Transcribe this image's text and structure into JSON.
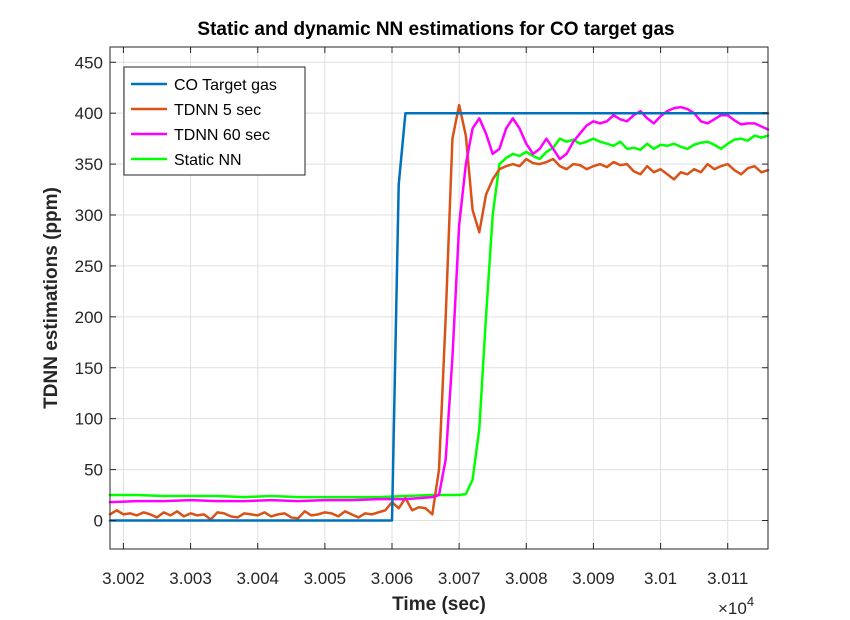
{
  "chart_data": {
    "type": "line",
    "title": "Static and dynamic NN estimations for CO target gas",
    "xlabel": "Time (sec)",
    "ylabel": "TDNN estimations (ppm)",
    "x_exponent_label": "×10",
    "x_exponent_power": "4",
    "xlim": [
      30018,
      30116
    ],
    "ylim": [
      -28,
      465
    ],
    "grid": true,
    "legend_position": "top-left",
    "x_ticks": [
      30020,
      30030,
      30040,
      30050,
      30060,
      30070,
      30080,
      30090,
      30100,
      30110
    ],
    "x_tick_labels": [
      "3.002",
      "3.003",
      "3.004",
      "3.005",
      "3.006",
      "3.007",
      "3.008",
      "3.009",
      "3.01",
      "3.011"
    ],
    "y_ticks": [
      0,
      50,
      100,
      150,
      200,
      250,
      300,
      350,
      400,
      450
    ],
    "y_tick_labels": [
      "0",
      "50",
      "100",
      "150",
      "200",
      "250",
      "300",
      "350",
      "400",
      "450"
    ],
    "series": [
      {
        "name": "CO Target gas",
        "color": "#0072BD",
        "x": [
          30018,
          30060,
          30061,
          30062,
          30116
        ],
        "y": [
          0,
          0,
          330,
          400,
          400
        ]
      },
      {
        "name": "TDNN 5 sec",
        "color": "#D95319",
        "x": [
          30018,
          30019,
          30020,
          30021,
          30022,
          30023,
          30024,
          30025,
          30026,
          30027,
          30028,
          30029,
          30030,
          30031,
          30032,
          30033,
          30034,
          30035,
          30036,
          30037,
          30038,
          30039,
          30040,
          30041,
          30042,
          30043,
          30044,
          30045,
          30046,
          30047,
          30048,
          30049,
          30050,
          30051,
          30052,
          30053,
          30054,
          30055,
          30056,
          30057,
          30058,
          30059,
          30060,
          30061,
          30062,
          30063,
          30064,
          30065,
          30066,
          30067,
          30068,
          30069,
          30070,
          30071,
          30072,
          30073,
          30074,
          30075,
          30076,
          30077,
          30078,
          30079,
          30080,
          30081,
          30082,
          30083,
          30084,
          30085,
          30086,
          30087,
          30088,
          30089,
          30090,
          30091,
          30092,
          30093,
          30094,
          30095,
          30096,
          30097,
          30098,
          30099,
          30100,
          30101,
          30102,
          30103,
          30104,
          30105,
          30106,
          30107,
          30108,
          30109,
          30110,
          30111,
          30112,
          30113,
          30114,
          30115,
          30116
        ],
        "y": [
          6,
          10,
          6,
          7,
          5,
          8,
          6,
          3,
          8,
          5,
          9,
          4,
          7,
          5,
          6,
          1,
          8,
          7,
          4,
          3,
          7,
          6,
          5,
          8,
          4,
          6,
          7,
          3,
          2,
          9,
          5,
          6,
          8,
          7,
          4,
          9,
          6,
          3,
          7,
          6,
          8,
          10,
          18,
          12,
          22,
          10,
          13,
          12,
          6,
          50,
          200,
          375,
          408,
          378,
          305,
          283,
          320,
          335,
          345,
          348,
          350,
          348,
          355,
          351,
          350,
          352,
          355,
          348,
          345,
          350,
          349,
          345,
          348,
          350,
          347,
          352,
          349,
          350,
          343,
          340,
          348,
          342,
          345,
          340,
          335,
          342,
          340,
          345,
          342,
          350,
          345,
          348,
          350,
          344,
          340,
          346,
          348,
          342,
          344
        ]
      },
      {
        "name": "TDNN 60 sec",
        "color": "#FF00FF",
        "x": [
          30018,
          30022,
          30026,
          30030,
          30034,
          30038,
          30042,
          30046,
          30050,
          30054,
          30058,
          30062,
          30064,
          30066,
          30067,
          30068,
          30069,
          30070,
          30071,
          30072,
          30073,
          30074,
          30075,
          30076,
          30077,
          30078,
          30079,
          30080,
          30081,
          30082,
          30083,
          30084,
          30085,
          30086,
          30087,
          30088,
          30089,
          30090,
          30091,
          30092,
          30093,
          30094,
          30095,
          30096,
          30097,
          30098,
          30099,
          30100,
          30101,
          30102,
          30103,
          30104,
          30105,
          30106,
          30107,
          30108,
          30109,
          30110,
          30111,
          30112,
          30113,
          30114,
          30115,
          30116
        ],
        "y": [
          18,
          19,
          19,
          20,
          19,
          19,
          20,
          19,
          20,
          20,
          21,
          21,
          22,
          23,
          25,
          60,
          160,
          290,
          350,
          385,
          395,
          380,
          360,
          365,
          385,
          395,
          385,
          370,
          360,
          365,
          375,
          365,
          355,
          360,
          372,
          380,
          388,
          392,
          390,
          392,
          398,
          394,
          392,
          398,
          402,
          395,
          390,
          397,
          402,
          405,
          406,
          404,
          400,
          392,
          390,
          394,
          398,
          398,
          393,
          389,
          390,
          390,
          387,
          384
        ]
      },
      {
        "name": "Static NN",
        "color": "#00FF00",
        "x": [
          30018,
          30022,
          30026,
          30030,
          30034,
          30038,
          30042,
          30046,
          30050,
          30054,
          30058,
          30062,
          30066,
          30070,
          30071,
          30072,
          30073,
          30074,
          30075,
          30076,
          30077,
          30078,
          30079,
          30080,
          30081,
          30082,
          30083,
          30084,
          30085,
          30086,
          30087,
          30088,
          30089,
          30090,
          30091,
          30092,
          30093,
          30094,
          30095,
          30096,
          30097,
          30098,
          30099,
          30100,
          30101,
          30102,
          30103,
          30104,
          30105,
          30106,
          30107,
          30108,
          30109,
          30110,
          30111,
          30112,
          30113,
          30114,
          30115,
          30116
        ],
        "y": [
          25,
          25,
          24,
          24,
          24,
          23,
          24,
          23,
          23,
          23,
          23,
          24,
          25,
          25,
          26,
          40,
          90,
          200,
          300,
          350,
          356,
          360,
          358,
          362,
          358,
          355,
          362,
          366,
          375,
          372,
          374,
          370,
          372,
          375,
          372,
          370,
          368,
          372,
          365,
          366,
          364,
          370,
          365,
          369,
          368,
          370,
          367,
          365,
          369,
          371,
          372,
          369,
          365,
          370,
          374,
          375,
          373,
          378,
          376,
          378
        ]
      }
    ]
  }
}
